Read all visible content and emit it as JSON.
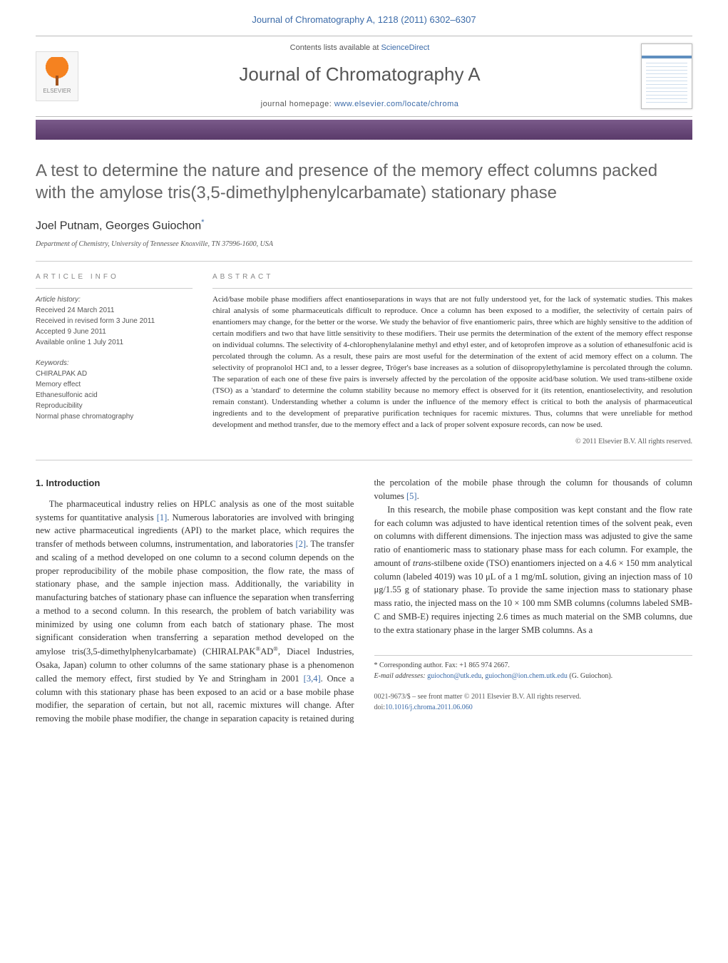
{
  "header": {
    "journal_ref": "Journal of Chromatography A, 1218 (2011) 6302–6307",
    "contents_prefix": "Contents lists available at ",
    "contents_link": "ScienceDirect",
    "journal_title": "Journal of Chromatography A",
    "homepage_prefix": "journal homepage: ",
    "homepage_link": "www.elsevier.com/locate/chroma",
    "publisher_logo_label": "ELSEVIER"
  },
  "article": {
    "title": "A test to determine the nature and presence of the memory effect columns packed with the amylose tris(3,5-dimethylphenylcarbamate) stationary phase",
    "author1": "Joel Putnam",
    "author_sep": ", ",
    "author2": "Georges Guiochon",
    "corr_marker": "*",
    "affiliation": "Department of Chemistry, University of Tennessee Knoxville, TN 37996-1600, USA"
  },
  "info": {
    "heading": "article info",
    "history_label": "Article history:",
    "received": "Received 24 March 2011",
    "revised": "Received in revised form 3 June 2011",
    "accepted": "Accepted 9 June 2011",
    "online": "Available online 1 July 2011",
    "keywords_label": "Keywords:",
    "kw1": "CHIRALPAK AD",
    "kw2": "Memory effect",
    "kw3": "Ethanesulfonic acid",
    "kw4": "Reproducibility",
    "kw5": "Normal phase chromatography"
  },
  "abstract": {
    "heading": "abstract",
    "body": "Acid/base mobile phase modifiers affect enantioseparations in ways that are not fully understood yet, for the lack of systematic studies. This makes chiral analysis of some pharmaceuticals difficult to reproduce. Once a column has been exposed to a modifier, the selectivity of certain pairs of enantiomers may change, for the better or the worse. We study the behavior of five enantiomeric pairs, three which are highly sensitive to the addition of certain modifiers and two that have little sensitivity to these modifiers. Their use permits the determination of the extent of the memory effect response on individual columns. The selectivity of 4-chlorophenylalanine methyl and ethyl ester, and of ketoprofen improve as a solution of ethanesulfonic acid is percolated through the column. As a result, these pairs are most useful for the determination of the extent of acid memory effect on a column. The selectivity of propranolol HCl and, to a lesser degree, Tröger's base increases as a solution of diisopropylethylamine is percolated through the column. The separation of each one of these five pairs is inversely affected by the percolation of the opposite acid/base solution. We used trans-stilbene oxide (TSO) as a 'standard' to determine the column stability because no memory effect is observed for it (its retention, enantioselectivity, and resolution remain constant). Understanding whether a column is under the influence of the memory effect is critical to both the analysis of pharmaceutical ingredients and to the development of preparative purification techniques for racemic mixtures. Thus, columns that were unreliable for method development and method transfer, due to the memory effect and a lack of proper solvent exposure records, can now be used.",
    "copyright": "© 2011 Elsevier B.V. All rights reserved."
  },
  "body": {
    "section_heading": "1.  Introduction",
    "p1a": "The pharmaceutical industry relies on HPLC analysis as one of the most suitable systems for quantitative analysis ",
    "ref1": "[1]",
    "p1b": ". Numerous laboratories are involved with bringing new active pharmaceutical ingredients (API) to the market place, which requires the transfer of methods between columns, instrumentation, and laboratories ",
    "ref2": "[2]",
    "p1c": ". The transfer and scaling of a method developed on one column to a second column depends on the proper reproducibility of the mobile phase composition, the flow rate, the mass of stationary phase, and the sample injection mass. Additionally, the variability in manufacturing batches of stationary phase can influence the separation when transferring a method to a second column. In this research, the problem of batch variability was minimized by using one column from each batch of stationary phase. The most significant consideration when transferring a separation method developed on the amylose tris(3,5-dimethylphenylcarbamate) ",
    "p1d_prefix": "(CHIRALPAK",
    "reg1": "®",
    "p1d_mid": "AD",
    "reg2": "®",
    "p1d_suffix": ", Diacel Industries, Osaka, Japan) column to other columns of the same stationary phase is a phenomenon called the memory effect, first studied by Ye and Stringham in 2001 ",
    "ref34": "[3,4]",
    "p1e": ". Once a column with this stationary phase has been exposed to an acid or a base mobile phase modifier, the separation of certain, but not all, racemic mixtures will change. After removing the mobile phase modifier, the change in separation capacity is retained during the percolation of the mobile phase through the column for thousands of column volumes ",
    "ref5": "[5]",
    "p1f": ".",
    "p2a": "In this research, the mobile phase composition was kept constant and the flow rate for each column was adjusted to have identical retention times of the solvent peak, even on columns with different dimensions. The injection mass was adjusted to give the same ratio of enantiomeric mass to stationary phase mass for each column. For example, the amount of ",
    "p2_trans": "trans",
    "p2b": "-stilbene oxide (TSO) enantiomers injected on a 4.6 × 150 mm analytical column (labeled 4019) was 10 μL of a 1 mg/mL solution, giving an injection mass of 10 μg/1.55 g of stationary phase. To provide the same injection mass to stationary phase mass ratio, the injected mass on the 10 × 100 mm SMB columns (columns labeled SMB-C and SMB-E) requires injecting 2.6 times as much material on the SMB columns, due to the extra stationary phase in the larger SMB columns. As a"
  },
  "footnotes": {
    "corr_label": "* Corresponding author. Fax: +1 865 974 2667.",
    "email_label_prefix": "E-mail addresses: ",
    "email1": "guiochon@utk.edu",
    "email_sep": ", ",
    "email2": "guiochon@ion.chem.utk.edu",
    "email_suffix": " (G. Guiochon).",
    "issn_line": "0021-9673/$ – see front matter © 2011 Elsevier B.V. All rights reserved.",
    "doi_prefix": "doi:",
    "doi": "10.1016/j.chroma.2011.06.060"
  },
  "colors": {
    "link": "#3a6aa8",
    "bar_top": "#7a5a8a",
    "bar_bottom": "#5a3a6a",
    "heading_gray": "#666666",
    "orange": "#f58220"
  }
}
